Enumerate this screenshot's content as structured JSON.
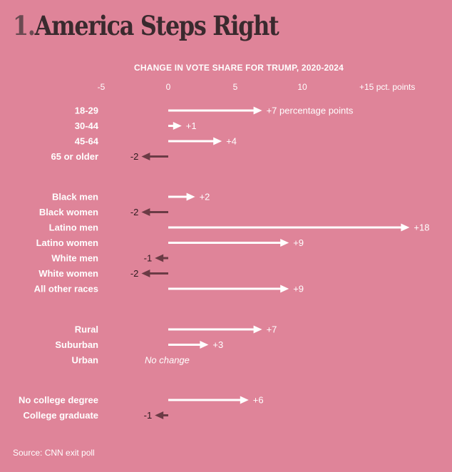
{
  "header": {
    "number": "1.",
    "title": "America Steps Right"
  },
  "chart_data": {
    "type": "bar",
    "title": "CHANGE IN VOTE SHARE FOR TRUMP, 2020-2024",
    "xlim": [
      -5,
      15
    ],
    "ticks": [
      {
        "value": -5,
        "label": "-5"
      },
      {
        "value": 0,
        "label": "0"
      },
      {
        "value": 5,
        "label": "5"
      },
      {
        "value": 10,
        "label": "10"
      },
      {
        "value": 15,
        "label": "+15 pct. points"
      }
    ],
    "groups": [
      {
        "rows": [
          {
            "label": "18-29",
            "value": 7,
            "value_label": "+7 percentage points"
          },
          {
            "label": "30-44",
            "value": 1,
            "value_label": "+1"
          },
          {
            "label": "45-64",
            "value": 4,
            "value_label": "+4"
          },
          {
            "label": "65 or older",
            "value": -2,
            "value_label": "-2"
          }
        ]
      },
      {
        "rows": [
          {
            "label": "Black men",
            "value": 2,
            "value_label": "+2"
          },
          {
            "label": "Black women",
            "value": -2,
            "value_label": "-2"
          },
          {
            "label": "Latino men",
            "value": 18,
            "value_label": "+18"
          },
          {
            "label": "Latino women",
            "value": 9,
            "value_label": "+9"
          },
          {
            "label": "White men",
            "value": -1,
            "value_label": "-1"
          },
          {
            "label": "White women",
            "value": -2,
            "value_label": "-2"
          },
          {
            "label": "All other races",
            "value": 9,
            "value_label": "+9"
          }
        ]
      },
      {
        "rows": [
          {
            "label": "Rural",
            "value": 7,
            "value_label": "+7"
          },
          {
            "label": "Suburban",
            "value": 3,
            "value_label": "+3"
          },
          {
            "label": "Urban",
            "value": 0,
            "value_label": "No change"
          }
        ]
      },
      {
        "rows": [
          {
            "label": "No college degree",
            "value": 6,
            "value_label": "+6"
          },
          {
            "label": "College graduate",
            "value": -1,
            "value_label": "-1"
          }
        ]
      }
    ],
    "colors": {
      "positive": "#ffffff",
      "negative": "#6b3b45",
      "background": "#df8499"
    }
  },
  "footer": {
    "source": "Source: CNN exit poll"
  }
}
